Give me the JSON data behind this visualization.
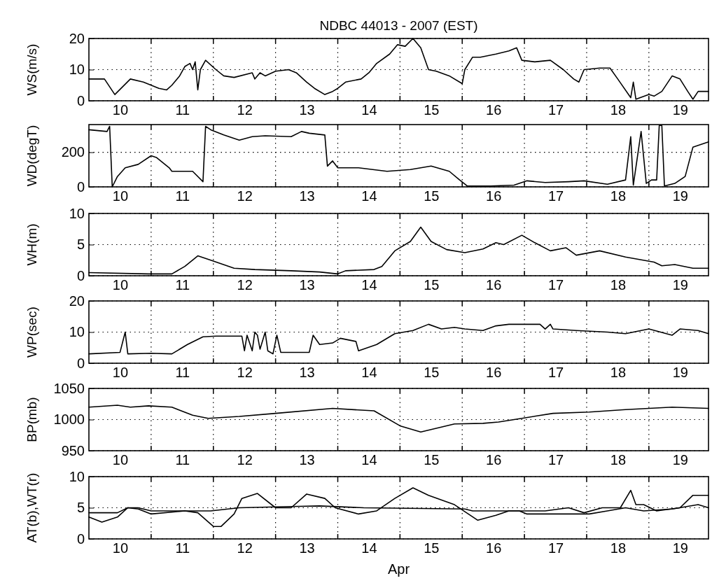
{
  "chart_data": [
    {
      "type": "line",
      "title": "NDBC 44013 - 2007  (EST)",
      "ylabel": "WS(m/s)",
      "xlim": [
        "2007-04-10T00:00",
        "2007-04-19T23:00"
      ],
      "ylim": [
        0,
        20
      ],
      "yticks": [
        0,
        10,
        20
      ],
      "grid": true,
      "line_style": "solid",
      "xticks": [
        {
          "value": "2007-04-10T12:00",
          "label": "10"
        },
        {
          "value": "2007-04-11T00:00",
          "label": null
        },
        {
          "value": "2007-04-11T12:00",
          "label": "11"
        },
        {
          "value": "2007-04-12T00:00",
          "label": null
        },
        {
          "value": "2007-04-12T12:00",
          "label": "12"
        },
        {
          "value": "2007-04-13T00:00",
          "label": null
        },
        {
          "value": "2007-04-13T12:00",
          "label": "13"
        },
        {
          "value": "2007-04-14T00:00",
          "label": null
        },
        {
          "value": "2007-04-14T12:00",
          "label": "14"
        },
        {
          "value": "2007-04-15T00:00",
          "label": null
        },
        {
          "value": "2007-04-15T12:00",
          "label": "15"
        },
        {
          "value": "2007-04-16T00:00",
          "label": null
        },
        {
          "value": "2007-04-16T12:00",
          "label": "16"
        },
        {
          "value": "2007-04-17T00:00",
          "label": null
        },
        {
          "value": "2007-04-17T12:00",
          "label": "17"
        },
        {
          "value": "2007-04-18T00:00",
          "label": null
        },
        {
          "value": "2007-04-18T12:00",
          "label": "18"
        },
        {
          "value": "2007-04-19T00:00",
          "label": null
        },
        {
          "value": "2007-04-19T12:00",
          "label": "19"
        }
      ],
      "series": [
        {
          "color": "#000000",
          "x": [
            "2007-04-10T00:00",
            "2007-04-10T06:00",
            "2007-04-10T10:00",
            "2007-04-10T16:00",
            "2007-04-10T21:00",
            "2007-04-11T00:00",
            "2007-04-11T03:00",
            "2007-04-11T06:00",
            "2007-04-11T08:00",
            "2007-04-11T11:00",
            "2007-04-11T13:00",
            "2007-04-11T15:00",
            "2007-04-11T16:00",
            "2007-04-11T17:00",
            "2007-04-11T18:00",
            "2007-04-11T19:00",
            "2007-04-11T21:00",
            "2007-04-12T01:00",
            "2007-04-12T04:00",
            "2007-04-12T08:00",
            "2007-04-12T15:00",
            "2007-04-12T16:00",
            "2007-04-12T18:00",
            "2007-04-12T20:00",
            "2007-04-13T00:00",
            "2007-04-13T05:00",
            "2007-04-13T08:00",
            "2007-04-13T12:00",
            "2007-04-13T15:00",
            "2007-04-13T19:00",
            "2007-04-13T22:00",
            "2007-04-14T00:00",
            "2007-04-14T03:00",
            "2007-04-14T09:00",
            "2007-04-14T12:00",
            "2007-04-14T15:00",
            "2007-04-14T20:00",
            "2007-04-14T23:00",
            "2007-04-15T02:00",
            "2007-04-15T05:00",
            "2007-04-15T08:00",
            "2007-04-15T11:00",
            "2007-04-15T14:00",
            "2007-04-15T19:00",
            "2007-04-16T00:00",
            "2007-04-16T01:00",
            "2007-04-16T04:00",
            "2007-04-16T07:00",
            "2007-04-16T13:00",
            "2007-04-16T18:00",
            "2007-04-16T21:00",
            "2007-04-16T23:00",
            "2007-04-17T04:00",
            "2007-04-17T10:00",
            "2007-04-17T15:00",
            "2007-04-17T19:00",
            "2007-04-17T21:00",
            "2007-04-17T23:00",
            "2007-04-18T05:00",
            "2007-04-18T09:00",
            "2007-04-18T12:00",
            "2007-04-18T17:00",
            "2007-04-18T18:00",
            "2007-04-18T19:00",
            "2007-04-19T00:00",
            "2007-04-19T02:00",
            "2007-04-19T05:00",
            "2007-04-19T09:00",
            "2007-04-19T12:00",
            "2007-04-19T15:00",
            "2007-04-19T17:00",
            "2007-04-19T19:00",
            "2007-04-19T23:00"
          ],
          "values": [
            7,
            7,
            2,
            7,
            6,
            5,
            4,
            3.5,
            5,
            8,
            11,
            12,
            10,
            12.5,
            3.5,
            10,
            13,
            10,
            8,
            7.5,
            9,
            7,
            9,
            8,
            9.5,
            10,
            9,
            6,
            4,
            2,
            3,
            4,
            6,
            7,
            9,
            12,
            15,
            18,
            17.5,
            20,
            17,
            10,
            9.5,
            8,
            5.5,
            10,
            14,
            14,
            15,
            16,
            17,
            13,
            12.5,
            13,
            10,
            7,
            6,
            10,
            10.5,
            10.5,
            7,
            1,
            6,
            0.5,
            2,
            1.5,
            3,
            8,
            7,
            3,
            0.5,
            3,
            3
          ]
        }
      ]
    },
    {
      "type": "line",
      "ylabel": "WD(degT)",
      "xlim": [
        "2007-04-10T00:00",
        "2007-04-19T23:00"
      ],
      "ylim": [
        0,
        360
      ],
      "yticks": [
        0,
        200
      ],
      "grid": true,
      "line_style": "solid",
      "xticks": [
        {
          "value": "2007-04-10T12:00",
          "label": "10"
        },
        {
          "value": "2007-04-11T00:00",
          "label": null
        },
        {
          "value": "2007-04-11T12:00",
          "label": "11"
        },
        {
          "value": "2007-04-12T00:00",
          "label": null
        },
        {
          "value": "2007-04-12T12:00",
          "label": "12"
        },
        {
          "value": "2007-04-13T00:00",
          "label": null
        },
        {
          "value": "2007-04-13T12:00",
          "label": "13"
        },
        {
          "value": "2007-04-14T00:00",
          "label": null
        },
        {
          "value": "2007-04-14T12:00",
          "label": "14"
        },
        {
          "value": "2007-04-15T00:00",
          "label": null
        },
        {
          "value": "2007-04-15T12:00",
          "label": "15"
        },
        {
          "value": "2007-04-16T00:00",
          "label": null
        },
        {
          "value": "2007-04-16T12:00",
          "label": "16"
        },
        {
          "value": "2007-04-17T00:00",
          "label": null
        },
        {
          "value": "2007-04-17T12:00",
          "label": "17"
        },
        {
          "value": "2007-04-18T00:00",
          "label": null
        },
        {
          "value": "2007-04-18T12:00",
          "label": "18"
        },
        {
          "value": "2007-04-19T00:00",
          "label": null
        },
        {
          "value": "2007-04-19T12:00",
          "label": "19"
        }
      ],
      "series": [
        {
          "color": "#000000",
          "x": [
            "2007-04-10T00:00",
            "2007-04-10T07:00",
            "2007-04-10T08:00",
            "2007-04-10T09:00",
            "2007-04-10T11:00",
            "2007-04-10T14:00",
            "2007-04-10T19:00",
            "2007-04-11T00:00",
            "2007-04-11T02:00",
            "2007-04-11T07:00",
            "2007-04-11T08:00",
            "2007-04-11T16:00",
            "2007-04-11T20:00",
            "2007-04-11T21:00",
            "2007-04-11T23:00",
            "2007-04-12T04:00",
            "2007-04-12T10:00",
            "2007-04-12T15:00",
            "2007-04-12T20:00",
            "2007-04-13T06:00",
            "2007-04-13T10:00",
            "2007-04-13T13:00",
            "2007-04-13T19:00",
            "2007-04-13T20:00",
            "2007-04-13T22:00",
            "2007-04-14T00:00",
            "2007-04-14T08:00",
            "2007-04-14T19:00",
            "2007-04-15T04:00",
            "2007-04-15T12:00",
            "2007-04-15T19:00",
            "2007-04-15T23:00",
            "2007-04-16T02:00",
            "2007-04-16T11:00",
            "2007-04-16T20:00",
            "2007-04-17T01:00",
            "2007-04-17T08:00",
            "2007-04-17T17:00",
            "2007-04-17T23:00",
            "2007-04-18T08:00",
            "2007-04-18T15:00",
            "2007-04-18T17:00",
            "2007-04-18T18:00",
            "2007-04-18T21:00",
            "2007-04-18T23:00",
            "2007-04-19T01:00",
            "2007-04-19T03:00",
            "2007-04-19T04:00",
            "2007-04-19T05:00",
            "2007-04-19T06:00",
            "2007-04-19T10:00",
            "2007-04-19T14:00",
            "2007-04-19T17:00",
            "2007-04-19T19:00",
            "2007-04-19T23:00"
          ],
          "values": [
            330,
            320,
            350,
            0,
            60,
            110,
            130,
            180,
            170,
            110,
            90,
            90,
            30,
            350,
            330,
            300,
            270,
            290,
            295,
            290,
            320,
            310,
            300,
            120,
            150,
            110,
            110,
            90,
            100,
            120,
            90,
            40,
            5,
            5,
            10,
            35,
            25,
            30,
            35,
            15,
            40,
            290,
            10,
            320,
            20,
            40,
            40,
            355,
            355,
            5,
            20,
            60,
            230,
            240,
            260
          ]
        }
      ]
    },
    {
      "type": "line",
      "ylabel": "WH(m)",
      "xlim": [
        "2007-04-10T00:00",
        "2007-04-19T23:00"
      ],
      "ylim": [
        0,
        10
      ],
      "yticks": [
        0,
        5,
        10
      ],
      "grid": true,
      "line_style": "solid",
      "xticks": [
        {
          "value": "2007-04-10T12:00",
          "label": "10"
        },
        {
          "value": "2007-04-11T00:00",
          "label": null
        },
        {
          "value": "2007-04-11T12:00",
          "label": "11"
        },
        {
          "value": "2007-04-12T00:00",
          "label": null
        },
        {
          "value": "2007-04-12T12:00",
          "label": "12"
        },
        {
          "value": "2007-04-13T00:00",
          "label": null
        },
        {
          "value": "2007-04-13T12:00",
          "label": "13"
        },
        {
          "value": "2007-04-14T00:00",
          "label": null
        },
        {
          "value": "2007-04-14T12:00",
          "label": "14"
        },
        {
          "value": "2007-04-15T00:00",
          "label": null
        },
        {
          "value": "2007-04-15T12:00",
          "label": "15"
        },
        {
          "value": "2007-04-16T00:00",
          "label": null
        },
        {
          "value": "2007-04-16T12:00",
          "label": "16"
        },
        {
          "value": "2007-04-17T00:00",
          "label": null
        },
        {
          "value": "2007-04-17T12:00",
          "label": "17"
        },
        {
          "value": "2007-04-18T00:00",
          "label": null
        },
        {
          "value": "2007-04-18T12:00",
          "label": "18"
        },
        {
          "value": "2007-04-19T00:00",
          "label": null
        },
        {
          "value": "2007-04-19T12:00",
          "label": "19"
        }
      ],
      "series": [
        {
          "color": "#000000",
          "x": [
            "2007-04-10T00:00",
            "2007-04-10T23:00",
            "2007-04-11T08:00",
            "2007-04-11T13:00",
            "2007-04-11T18:00",
            "2007-04-11T23:00",
            "2007-04-12T08:00",
            "2007-04-12T16:00",
            "2007-04-13T06:00",
            "2007-04-13T17:00",
            "2007-04-14T00:00",
            "2007-04-14T03:00",
            "2007-04-14T14:00",
            "2007-04-14T17:00",
            "2007-04-14T22:00",
            "2007-04-15T04:00",
            "2007-04-15T08:00",
            "2007-04-15T12:00",
            "2007-04-15T18:00",
            "2007-04-16T01:00",
            "2007-04-16T08:00",
            "2007-04-16T13:00",
            "2007-04-16T16:00",
            "2007-04-16T23:00",
            "2007-04-17T04:00",
            "2007-04-17T10:00",
            "2007-04-17T16:00",
            "2007-04-17T20:00",
            "2007-04-18T05:00",
            "2007-04-18T15:00",
            "2007-04-19T02:00",
            "2007-04-19T05:00",
            "2007-04-19T10:00",
            "2007-04-19T17:00",
            "2007-04-19T23:00"
          ],
          "values": [
            0.5,
            0.3,
            0.3,
            1.5,
            3.2,
            2.5,
            1.2,
            1,
            0.8,
            0.6,
            0.3,
            0.8,
            1,
            1.5,
            4,
            5.5,
            7.8,
            5.5,
            4.2,
            3.7,
            4.3,
            5.3,
            5,
            6.5,
            5.3,
            4,
            4.5,
            3.3,
            4,
            3,
            2.2,
            1.6,
            1.8,
            1.2,
            1.2
          ]
        }
      ]
    },
    {
      "type": "line",
      "ylabel": "WP(sec)",
      "xlim": [
        "2007-04-10T00:00",
        "2007-04-19T23:00"
      ],
      "ylim": [
        0,
        20
      ],
      "yticks": [
        0,
        10,
        20
      ],
      "grid": true,
      "line_style": "solid",
      "xticks": [
        {
          "value": "2007-04-10T12:00",
          "label": "10"
        },
        {
          "value": "2007-04-11T00:00",
          "label": null
        },
        {
          "value": "2007-04-11T12:00",
          "label": "11"
        },
        {
          "value": "2007-04-12T00:00",
          "label": null
        },
        {
          "value": "2007-04-12T12:00",
          "label": "12"
        },
        {
          "value": "2007-04-13T00:00",
          "label": null
        },
        {
          "value": "2007-04-13T12:00",
          "label": "13"
        },
        {
          "value": "2007-04-14T00:00",
          "label": null
        },
        {
          "value": "2007-04-14T12:00",
          "label": "14"
        },
        {
          "value": "2007-04-15T00:00",
          "label": null
        },
        {
          "value": "2007-04-15T12:00",
          "label": "15"
        },
        {
          "value": "2007-04-16T00:00",
          "label": null
        },
        {
          "value": "2007-04-16T12:00",
          "label": "16"
        },
        {
          "value": "2007-04-17T00:00",
          "label": null
        },
        {
          "value": "2007-04-17T12:00",
          "label": "17"
        },
        {
          "value": "2007-04-18T00:00",
          "label": null
        },
        {
          "value": "2007-04-18T12:00",
          "label": "18"
        },
        {
          "value": "2007-04-19T00:00",
          "label": null
        },
        {
          "value": "2007-04-19T12:00",
          "label": "19"
        }
      ],
      "series": [
        {
          "color": "#000000",
          "x": [
            "2007-04-10T00:00",
            "2007-04-10T12:00",
            "2007-04-10T14:00",
            "2007-04-10T15:00",
            "2007-04-11T00:00",
            "2007-04-11T08:00",
            "2007-04-11T14:00",
            "2007-04-11T20:00",
            "2007-04-12T01:00",
            "2007-04-12T11:00",
            "2007-04-12T12:00",
            "2007-04-12T13:00",
            "2007-04-12T15:00",
            "2007-04-12T16:00",
            "2007-04-12T17:00",
            "2007-04-12T18:00",
            "2007-04-12T20:00",
            "2007-04-12T21:00",
            "2007-04-12T23:00",
            "2007-04-13T00:30",
            "2007-04-13T02:00",
            "2007-04-13T13:00",
            "2007-04-13T14:30",
            "2007-04-13T17:00",
            "2007-04-13T22:00",
            "2007-04-14T01:00",
            "2007-04-14T07:00",
            "2007-04-14T08:00",
            "2007-04-14T15:00",
            "2007-04-14T22:00",
            "2007-04-15T05:00",
            "2007-04-15T11:00",
            "2007-04-15T16:00",
            "2007-04-15T21:00",
            "2007-04-16T01:00",
            "2007-04-16T08:00",
            "2007-04-16T13:00",
            "2007-04-16T18:00",
            "2007-04-17T06:00",
            "2007-04-17T08:00",
            "2007-04-17T10:00",
            "2007-04-17T11:00",
            "2007-04-17T20:00",
            "2007-04-18T08:00",
            "2007-04-18T15:00",
            "2007-04-19T00:00",
            "2007-04-19T09:00",
            "2007-04-19T12:00",
            "2007-04-19T19:00",
            "2007-04-19T23:00"
          ],
          "values": [
            3,
            3.5,
            10,
            3,
            3.2,
            3,
            6,
            8.5,
            8.7,
            8.7,
            4,
            9,
            4,
            10,
            9,
            4.5,
            10,
            4,
            3,
            9,
            3.5,
            3.5,
            9,
            6,
            6.5,
            8,
            7,
            4,
            6,
            9.5,
            10.5,
            12.5,
            11,
            11.5,
            11,
            10.5,
            12,
            12.5,
            12.5,
            11,
            12.5,
            11,
            10.5,
            10,
            9.5,
            11,
            9,
            11,
            10.5,
            9.5
          ]
        }
      ]
    },
    {
      "type": "line",
      "ylabel": "BP(mb)",
      "xlim": [
        "2007-04-10T00:00",
        "2007-04-19T23:00"
      ],
      "ylim": [
        950,
        1050
      ],
      "yticks": [
        950,
        1000,
        1050
      ],
      "grid": true,
      "line_style": "solid",
      "xticks": [
        {
          "value": "2007-04-10T12:00",
          "label": "10"
        },
        {
          "value": "2007-04-11T00:00",
          "label": null
        },
        {
          "value": "2007-04-11T12:00",
          "label": "11"
        },
        {
          "value": "2007-04-12T00:00",
          "label": null
        },
        {
          "value": "2007-04-12T12:00",
          "label": "12"
        },
        {
          "value": "2007-04-13T00:00",
          "label": null
        },
        {
          "value": "2007-04-13T12:00",
          "label": "13"
        },
        {
          "value": "2007-04-14T00:00",
          "label": null
        },
        {
          "value": "2007-04-14T12:00",
          "label": "14"
        },
        {
          "value": "2007-04-15T00:00",
          "label": null
        },
        {
          "value": "2007-04-15T12:00",
          "label": "15"
        },
        {
          "value": "2007-04-16T00:00",
          "label": null
        },
        {
          "value": "2007-04-16T12:00",
          "label": "16"
        },
        {
          "value": "2007-04-17T00:00",
          "label": null
        },
        {
          "value": "2007-04-17T12:00",
          "label": "17"
        },
        {
          "value": "2007-04-18T00:00",
          "label": null
        },
        {
          "value": "2007-04-18T12:00",
          "label": "18"
        },
        {
          "value": "2007-04-19T00:00",
          "label": null
        },
        {
          "value": "2007-04-19T12:00",
          "label": "19"
        }
      ],
      "series": [
        {
          "color": "#000000",
          "x": [
            "2007-04-10T00:00",
            "2007-04-10T11:00",
            "2007-04-10T16:00",
            "2007-04-10T23:00",
            "2007-04-11T08:00",
            "2007-04-11T16:00",
            "2007-04-11T22:00",
            "2007-04-12T10:00",
            "2007-04-13T00:00",
            "2007-04-13T22:00",
            "2007-04-14T14:00",
            "2007-04-15T00:00",
            "2007-04-15T08:00",
            "2007-04-15T21:00",
            "2007-04-16T08:00",
            "2007-04-16T14:00",
            "2007-04-16T23:00",
            "2007-04-17T11:00",
            "2007-04-18T01:00",
            "2007-04-18T15:00",
            "2007-04-19T09:00",
            "2007-04-19T23:00"
          ],
          "values": [
            1020,
            1023,
            1020,
            1022,
            1020,
            1007,
            1002,
            1005,
            1010,
            1018,
            1014,
            990,
            980,
            993,
            994,
            996,
            1002,
            1010,
            1012,
            1016,
            1020,
            1018
          ]
        }
      ]
    },
    {
      "type": "line",
      "ylabel": "AT(b),WT(r)",
      "xlabel": "Apr",
      "xlim": [
        "2007-04-10T00:00",
        "2007-04-19T23:00"
      ],
      "ylim": [
        0,
        10
      ],
      "yticks": [
        0,
        5,
        10
      ],
      "grid": true,
      "line_style": "solid",
      "xticks": [
        {
          "value": "2007-04-10T12:00",
          "label": "10"
        },
        {
          "value": "2007-04-11T00:00",
          "label": null
        },
        {
          "value": "2007-04-11T12:00",
          "label": "11"
        },
        {
          "value": "2007-04-12T00:00",
          "label": null
        },
        {
          "value": "2007-04-12T12:00",
          "label": "12"
        },
        {
          "value": "2007-04-13T00:00",
          "label": null
        },
        {
          "value": "2007-04-13T12:00",
          "label": "13"
        },
        {
          "value": "2007-04-14T00:00",
          "label": null
        },
        {
          "value": "2007-04-14T12:00",
          "label": "14"
        },
        {
          "value": "2007-04-15T00:00",
          "label": null
        },
        {
          "value": "2007-04-15T12:00",
          "label": "15"
        },
        {
          "value": "2007-04-16T00:00",
          "label": null
        },
        {
          "value": "2007-04-16T12:00",
          "label": "16"
        },
        {
          "value": "2007-04-17T00:00",
          "label": null
        },
        {
          "value": "2007-04-17T12:00",
          "label": "17"
        },
        {
          "value": "2007-04-18T00:00",
          "label": null
        },
        {
          "value": "2007-04-18T12:00",
          "label": "18"
        },
        {
          "value": "2007-04-19T00:00",
          "label": null
        },
        {
          "value": "2007-04-19T12:00",
          "label": "19"
        }
      ],
      "series": [
        {
          "color": "#000000",
          "x": [
            "2007-04-10T00:00",
            "2007-04-10T05:00",
            "2007-04-10T11:00",
            "2007-04-10T15:00",
            "2007-04-10T19:00",
            "2007-04-11T00:00",
            "2007-04-11T13:00",
            "2007-04-11T18:00",
            "2007-04-12T00:00",
            "2007-04-12T03:00",
            "2007-04-12T08:00",
            "2007-04-12T11:00",
            "2007-04-12T17:00",
            "2007-04-13T00:00",
            "2007-04-13T06:00",
            "2007-04-13T12:00",
            "2007-04-13T19:00",
            "2007-04-13T23:00",
            "2007-04-14T08:00",
            "2007-04-14T15:00",
            "2007-04-14T22:00",
            "2007-04-15T05:00",
            "2007-04-15T11:00",
            "2007-04-15T21:00",
            "2007-04-16T06:00",
            "2007-04-16T13:00",
            "2007-04-16T18:00",
            "2007-04-17T08:00",
            "2007-04-17T17:00",
            "2007-04-17T23:00",
            "2007-04-18T06:00",
            "2007-04-18T13:00",
            "2007-04-18T17:00",
            "2007-04-18T19:00",
            "2007-04-18T22:00",
            "2007-04-19T03:00",
            "2007-04-19T12:00",
            "2007-04-19T17:00",
            "2007-04-19T23:00"
          ],
          "values": [
            3.5,
            2.7,
            3.5,
            5,
            4.8,
            4,
            4.5,
            4.2,
            2,
            2,
            4,
            6.5,
            7.3,
            5,
            5,
            7.2,
            6.5,
            5,
            4,
            4.5,
            6.5,
            8.2,
            7,
            5.5,
            3,
            3.8,
            4.5,
            4.5,
            5,
            4.2,
            5,
            5,
            7.8,
            5.5,
            5.5,
            4.5,
            5,
            7,
            7
          ]
        },
        {
          "color": "#000000",
          "x": [
            "2007-04-10T00:00",
            "2007-04-10T11:00",
            "2007-04-10T15:00",
            "2007-04-10T19:00",
            "2007-04-11T00:00",
            "2007-04-11T23:00",
            "2007-04-12T10:00",
            "2007-04-13T06:00",
            "2007-04-13T17:00",
            "2007-04-14T10:00",
            "2007-04-16T01:00",
            "2007-04-16T04:00",
            "2007-04-16T22:00",
            "2007-04-17T01:00",
            "2007-04-18T01:00",
            "2007-04-18T08:00",
            "2007-04-18T15:00",
            "2007-04-18T22:00",
            "2007-04-19T09:00",
            "2007-04-19T19:00",
            "2007-04-19T23:00"
          ],
          "values": [
            4.2,
            4.2,
            5,
            5,
            4.5,
            4.5,
            5,
            5.2,
            5.3,
            5,
            4.8,
            4.5,
            4.5,
            4,
            4,
            4.5,
            5,
            4.5,
            4.8,
            5.5,
            5
          ]
        }
      ]
    }
  ]
}
